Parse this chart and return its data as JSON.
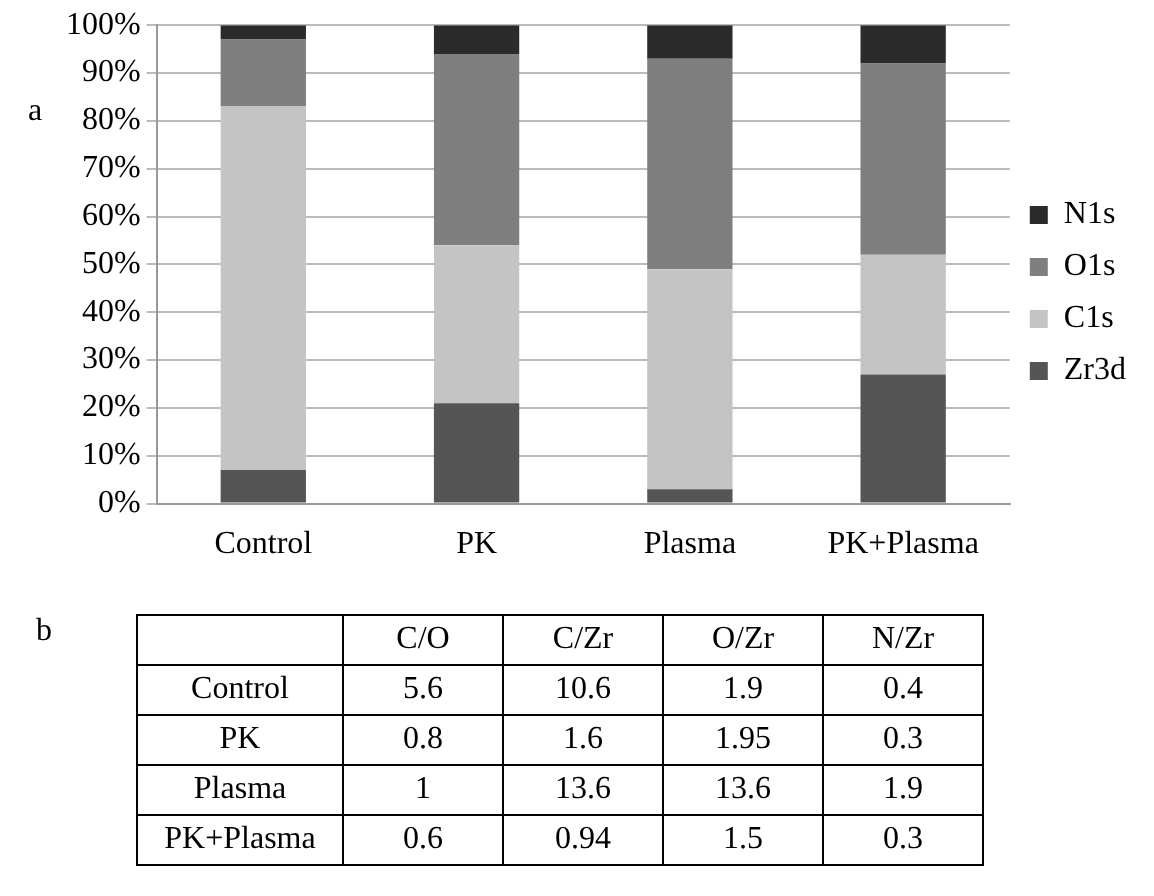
{
  "chart_data": [
    {
      "type": "bar",
      "stacked": true,
      "categories": [
        "Control",
        "PK",
        "Plasma",
        "PK+Plasma"
      ],
      "series": [
        {
          "name": "Zr3d",
          "color": "#555555",
          "values": [
            7,
            21,
            3,
            27
          ]
        },
        {
          "name": "C1s",
          "color": "#c4c4c4",
          "values": [
            76,
            33,
            46,
            25
          ]
        },
        {
          "name": "O1s",
          "color": "#7f7f7f",
          "values": [
            14,
            40,
            44,
            40
          ]
        },
        {
          "name": "N1s",
          "color": "#2b2b2b",
          "values": [
            3,
            6,
            7,
            8
          ]
        }
      ],
      "ylim": [
        0,
        100
      ],
      "yticks": [
        {
          "value": 0,
          "label": "0%"
        },
        {
          "value": 10,
          "label": "10%"
        },
        {
          "value": 20,
          "label": "20%"
        },
        {
          "value": 30,
          "label": "30%"
        },
        {
          "value": 40,
          "label": "40%"
        },
        {
          "value": 50,
          "label": "50%"
        },
        {
          "value": 60,
          "label": "60%"
        },
        {
          "value": 70,
          "label": "70%"
        },
        {
          "value": 80,
          "label": "80%"
        },
        {
          "value": 90,
          "label": "90%"
        },
        {
          "value": 100,
          "label": "100%"
        }
      ],
      "grid": "y",
      "legend": "right",
      "annotations": [
        "a"
      ]
    },
    {
      "type": "other",
      "annotations": [
        "b"
      ],
      "categories": [
        "C/O",
        "C/Zr",
        "O/Zr",
        "N/Zr"
      ],
      "y_categories": [
        "Control",
        "PK",
        "Plasma",
        "PK+Plasma"
      ],
      "cell_labels": [
        [
          "5.6",
          "10.6",
          "1.9",
          "0.4"
        ],
        [
          "0.8",
          "1.6",
          "1.95",
          "0.3"
        ],
        [
          "1",
          "13.6",
          "13.6",
          "1.9"
        ],
        [
          "0.6",
          "0.94",
          "1.5",
          "0.3"
        ]
      ]
    }
  ]
}
